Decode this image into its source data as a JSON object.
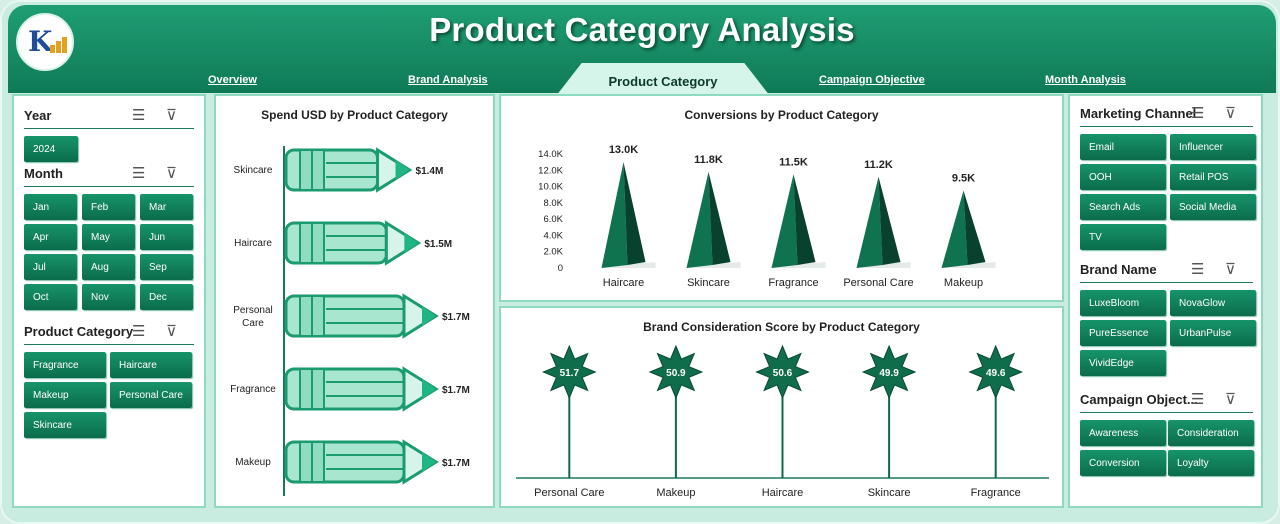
{
  "header": {
    "title": "Product Category Analysis",
    "tabs": [
      "Overview",
      "Brand Analysis",
      "Product Category",
      "Campaign Objective",
      "Month Analysis"
    ],
    "active_tab": "Product Category"
  },
  "slicers": {
    "year": {
      "title": "Year",
      "items": [
        "2024"
      ]
    },
    "month": {
      "title": "Month",
      "items": [
        "Jan",
        "Feb",
        "Mar",
        "Apr",
        "May",
        "Jun",
        "Jul",
        "Aug",
        "Sep",
        "Oct",
        "Nov",
        "Dec"
      ]
    },
    "product_category": {
      "title": "Product Category",
      "items": [
        "Fragrance",
        "Haircare",
        "Makeup",
        "Personal Care",
        "Skincare"
      ]
    },
    "marketing_channel": {
      "title": "Marketing Channel",
      "items": [
        "Email",
        "Influencer",
        "OOH",
        "Retail POS",
        "Search Ads",
        "Social Media",
        "TV"
      ]
    },
    "brand_name": {
      "title": "Brand Name",
      "items": [
        "LuxeBloom",
        "NovaGlow",
        "PureEssence",
        "UrbanPulse",
        "VividEdge"
      ]
    },
    "campaign_objective": {
      "title": "Campaign Object...",
      "items": [
        "Awareness",
        "Consideration",
        "Conversion",
        "Loyalty"
      ]
    }
  },
  "icons": {
    "multi_select": "multi-select-icon",
    "clear_filter": "clear-filter-icon"
  },
  "colors": {
    "header": "#13875f",
    "button": "#0f7a57",
    "accent": "#1fb585",
    "chart_dark": "#0b5a40"
  },
  "chart_data": [
    {
      "type": "bar",
      "title": "Spend USD by Product Category",
      "categories": [
        "Skincare",
        "Haircare",
        "Personal Care",
        "Fragrance",
        "Makeup"
      ],
      "values": [
        1.4,
        1.5,
        1.7,
        1.7,
        1.7
      ],
      "data_labels": [
        "$1.4M",
        "$1.5M",
        "$1.7M",
        "$1.7M",
        "$1.7M"
      ],
      "unit": "USD millions"
    },
    {
      "type": "bar",
      "title": "Conversions by Product Category",
      "categories": [
        "Haircare",
        "Skincare",
        "Fragrance",
        "Personal Care",
        "Makeup"
      ],
      "values": [
        13000,
        11800,
        11500,
        11200,
        9500
      ],
      "data_labels": [
        "13.0K",
        "11.8K",
        "11.5K",
        "11.2K",
        "9.5K"
      ],
      "yticks": [
        "0",
        "2.0K",
        "4.0K",
        "6.0K",
        "8.0K",
        "10.0K",
        "12.0K",
        "14.0K"
      ],
      "ylim": [
        0,
        14000
      ]
    },
    {
      "type": "scatter",
      "title": "Brand Consideration Score by Product Category",
      "categories": [
        "Personal Care",
        "Makeup",
        "Haircare",
        "Skincare",
        "Fragrance"
      ],
      "values": [
        51.7,
        50.9,
        50.6,
        49.9,
        49.6
      ],
      "data_labels": [
        "51.7",
        "50.9",
        "50.6",
        "49.9",
        "49.6"
      ]
    }
  ]
}
